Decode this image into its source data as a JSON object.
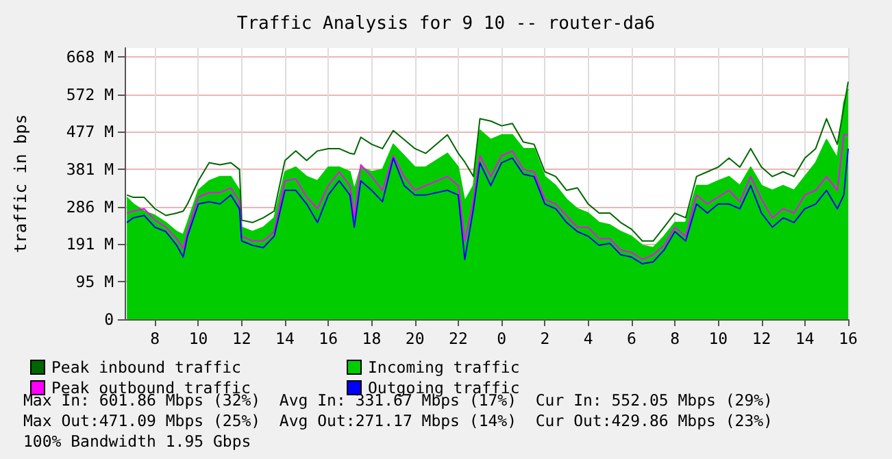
{
  "chart_data": {
    "type": "line",
    "title": "Traffic Analysis for 9 10 -- router-da6",
    "ylabel": "traffic in bps",
    "x": [
      "--09-09T06:42",
      "--09-09T07:00",
      "--09-09T07:30",
      "--09-09T08:00",
      "--09-09T08:30",
      "--09-09T09:00",
      "--09-09T09:18",
      "--09-09T09:30",
      "--09-09T10:00",
      "--09-09T10:30",
      "--09-09T11:00",
      "--09-09T11:30",
      "--09-09T11:54",
      "--09-09T12:00",
      "--09-09T12:30",
      "--09-09T13:00",
      "--09-09T13:30",
      "--09-09T14:00",
      "--09-09T14:30",
      "--09-09T15:00",
      "--09-09T15:30",
      "--09-09T16:00",
      "--09-09T16:30",
      "--09-09T17:00",
      "--09-09T17:12",
      "--09-09T17:30",
      "--09-09T18:00",
      "--09-09T18:30",
      "--09-09T19:00",
      "--09-09T19:30",
      "--09-09T20:00",
      "--09-09T20:30",
      "--09-09T21:30",
      "--09-09T22:00",
      "--09-09T22:18",
      "--09-09T22:42",
      "--09-09T23:00",
      "--09-09T23:30",
      "--09-10T00:00",
      "--09-10T00:30",
      "--09-10T01:00",
      "--09-10T01:30",
      "--09-10T02:00",
      "--09-10T02:30",
      "--09-10T03:00",
      "--09-10T03:30",
      "--09-10T04:00",
      "--09-10T04:30",
      "--09-10T05:00",
      "--09-10T05:30",
      "--09-10T06:00",
      "--09-10T06:30",
      "--09-10T07:00",
      "--09-10T07:30",
      "--09-10T08:00",
      "--09-10T08:30",
      "--09-10T09:00",
      "--09-10T09:30",
      "--09-10T10:00",
      "--09-10T10:30",
      "--09-10T11:00",
      "--09-10T11:30",
      "--09-10T12:00",
      "--09-10T12:30",
      "--09-10T13:00",
      "--09-10T13:30",
      "--09-10T14:00",
      "--09-10T14:30",
      "--09-10T15:00",
      "--09-10T15:30",
      "--09-10T15:48",
      "--09-10T16:00"
    ],
    "series": [
      {
        "name": "Peak inbound traffic",
        "type": "line",
        "color": "#006600",
        "values": [
          316,
          310,
          310,
          281,
          264,
          270,
          275,
          293,
          352,
          398,
          393,
          398,
          381,
          252,
          246,
          258,
          275,
          404,
          428,
          404,
          428,
          434,
          434,
          422,
          420,
          463,
          445,
          434,
          480,
          457,
          434,
          422,
          469,
          422,
          400,
          363,
          510,
          504,
          492,
          498,
          451,
          445,
          375,
          363,
          328,
          334,
          293,
          270,
          270,
          246,
          229,
          199,
          199,
          234,
          270,
          258,
          363,
          375,
          387,
          410,
          387,
          434,
          387,
          363,
          375,
          363,
          410,
          434,
          510,
          445,
          539,
          604
        ]
      },
      {
        "name": "Incoming traffic",
        "type": "area",
        "color": "#00cc00",
        "values": [
          310,
          293,
          275,
          264,
          246,
          223,
          215,
          246,
          328,
          352,
          363,
          363,
          328,
          234,
          223,
          234,
          258,
          375,
          387,
          363,
          352,
          387,
          387,
          375,
          330,
          387,
          375,
          381,
          445,
          416,
          387,
          387,
          422,
          387,
          300,
          340,
          481,
          457,
          469,
          469,
          434,
          434,
          363,
          340,
          305,
          281,
          270,
          246,
          240,
          223,
          211,
          188,
          182,
          211,
          246,
          246,
          340,
          340,
          352,
          363,
          340,
          387,
          340,
          328,
          340,
          328,
          363,
          398,
          457,
          410,
          551,
          586
        ]
      },
      {
        "name": "Peak outbound traffic",
        "type": "line",
        "color": "#ff00ff",
        "values": [
          270,
          275,
          281,
          252,
          234,
          205,
          180,
          223,
          311,
          322,
          322,
          334,
          300,
          211,
          199,
          199,
          223,
          352,
          357,
          311,
          281,
          340,
          375,
          340,
          260,
          393,
          363,
          328,
          416,
          363,
          328,
          340,
          363,
          340,
          200,
          300,
          416,
          363,
          416,
          428,
          381,
          375,
          305,
          293,
          264,
          234,
          234,
          205,
          205,
          176,
          170,
          152,
          164,
          188,
          234,
          211,
          316,
          293,
          311,
          328,
          299,
          363,
          305,
          258,
          281,
          270,
          316,
          328,
          363,
          328,
          469,
          469
        ]
      },
      {
        "name": "Outgoing traffic",
        "type": "line",
        "color": "#0000ff",
        "values": [
          246,
          258,
          264,
          234,
          223,
          188,
          158,
          211,
          293,
          299,
          293,
          316,
          281,
          199,
          188,
          182,
          211,
          328,
          328,
          293,
          246,
          316,
          352,
          316,
          234,
          352,
          328,
          299,
          410,
          340,
          316,
          316,
          328,
          316,
          152,
          281,
          398,
          340,
          398,
          410,
          369,
          363,
          293,
          281,
          246,
          223,
          211,
          188,
          193,
          164,
          158,
          141,
          146,
          176,
          223,
          199,
          293,
          270,
          293,
          293,
          281,
          340,
          270,
          234,
          258,
          246,
          281,
          293,
          328,
          281,
          316,
          434
        ]
      }
    ],
    "xlim": [
      "--09-09T06:36",
      "--09-10T16:00"
    ],
    "xticks": [
      {
        "value": "--09-09T08:00",
        "label": "8"
      },
      {
        "value": "--09-09T10:00",
        "label": "10"
      },
      {
        "value": "--09-09T12:00",
        "label": "12"
      },
      {
        "value": "--09-09T14:00",
        "label": "14"
      },
      {
        "value": "--09-09T16:00",
        "label": "16"
      },
      {
        "value": "--09-09T18:00",
        "label": "18"
      },
      {
        "value": "--09-09T20:00",
        "label": "20"
      },
      {
        "value": "--09-09T22:00",
        "label": "22"
      },
      {
        "value": "--09-10T00:00",
        "label": "0"
      },
      {
        "value": "--09-10T02:00",
        "label": "2"
      },
      {
        "value": "--09-10T04:00",
        "label": "4"
      },
      {
        "value": "--09-10T06:00",
        "label": "6"
      },
      {
        "value": "--09-10T08:00",
        "label": "8"
      },
      {
        "value": "--09-10T10:00",
        "label": "10"
      },
      {
        "value": "--09-10T12:00",
        "label": "12"
      },
      {
        "value": "--09-10T14:00",
        "label": "14"
      },
      {
        "value": "--09-10T16:00",
        "label": "16"
      }
    ],
    "ylim": [
      0,
      690
    ],
    "yticks": [
      0,
      {
        "value": 95,
        "label": "95 M"
      },
      {
        "value": 191,
        "label": "191 M"
      },
      {
        "value": 286,
        "label": "286 M"
      },
      {
        "value": 381,
        "label": "381 M"
      },
      {
        "value": 477,
        "label": "477 M"
      },
      {
        "value": 572,
        "label": "572 M"
      },
      {
        "value": 668,
        "label": "668 M"
      }
    ],
    "grid": true,
    "legend": "bottom",
    "marker": "none",
    "annotations": [
      "Max In: 601.86 Mbps (32%)  Avg In: 331.67 Mbps (17%)  Cur In: 552.05 Mbps (29%)",
      "Max Out:471.09 Mbps (25%)  Avg Out:271.17 Mbps (14%)  Cur Out:429.86 Mbps (23%)",
      "100% Bandwidth 1.95 Gbps"
    ]
  }
}
